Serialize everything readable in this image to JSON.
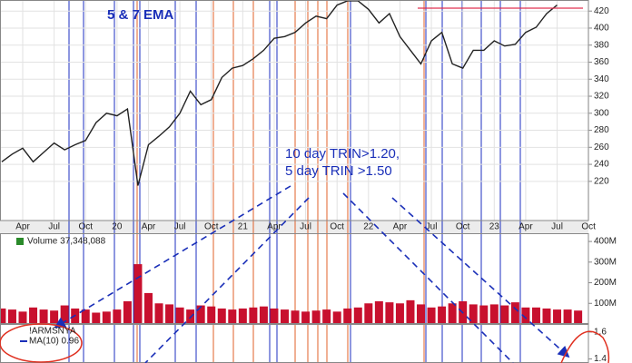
{
  "chart_data": [
    {
      "type": "line",
      "annotations": [
        "5 & 7 EMA",
        "10 day TRIN>1.20,",
        "5 day TRIN >1.50"
      ],
      "categories": [
        null,
        null,
        "Apr",
        null,
        null,
        "Jul",
        null,
        null,
        "Oct",
        null,
        null,
        "20",
        null,
        null,
        "Apr",
        null,
        null,
        "Jul",
        null,
        null,
        "Oct",
        null,
        null,
        "21",
        null,
        null,
        "Apr",
        null,
        null,
        "Jul",
        null,
        null,
        "Oct",
        null,
        null,
        "22",
        null,
        null,
        "Apr",
        null,
        null,
        "Jul",
        null,
        null,
        "Oct",
        null,
        null,
        "23",
        null,
        null,
        "Apr",
        null,
        null,
        "Jul",
        null,
        null,
        "Oct"
      ],
      "series": [
        {
          "color": "#222222",
          "values": [
            243,
            252,
            259,
            243,
            254,
            265,
            257,
            263,
            268,
            289,
            300,
            297,
            305,
            215,
            263,
            273,
            284,
            300,
            326,
            310,
            316,
            342,
            353,
            356,
            364,
            374,
            388,
            390,
            395,
            406,
            414,
            411,
            427,
            432,
            432,
            422,
            406,
            417,
            390,
            374,
            358,
            385,
            395,
            358,
            353,
            374,
            374,
            385,
            379,
            381,
            395,
            401,
            417,
            427,
            null,
            null,
            null
          ]
        }
      ],
      "ylim": [
        174,
        433
      ],
      "yticks": [
        220,
        240,
        260,
        280,
        300,
        320,
        340,
        360,
        380,
        400,
        420
      ],
      "grid": true
    },
    {
      "type": "bar",
      "legend": "Volume 37,348,088",
      "color": "#c8102e",
      "values": [
        75000000,
        70000000,
        60000000,
        80000000,
        70000000,
        65000000,
        90000000,
        75000000,
        70000000,
        55000000,
        60000000,
        70000000,
        110000000,
        290000000,
        150000000,
        100000000,
        95000000,
        80000000,
        70000000,
        90000000,
        85000000,
        75000000,
        70000000,
        75000000,
        80000000,
        85000000,
        75000000,
        70000000,
        65000000,
        60000000,
        65000000,
        70000000,
        60000000,
        75000000,
        80000000,
        100000000,
        110000000,
        105000000,
        100000000,
        115000000,
        95000000,
        80000000,
        85000000,
        100000000,
        110000000,
        95000000,
        90000000,
        95000000,
        90000000,
        105000000,
        80000000,
        80000000,
        75000000,
        70000000,
        70000000,
        65000000,
        null
      ],
      "ylim": [
        0,
        440000000
      ],
      "yticks": [
        {
          "value": 100000000,
          "label": "100M"
        },
        {
          "value": 200000000,
          "label": "200M"
        },
        {
          "value": 300000000,
          "label": "300M"
        },
        {
          "value": 400000000,
          "label": "400M"
        }
      ]
    },
    {
      "type": "line",
      "legend": [
        "!ARMSNYA",
        "MA(10) 0.96"
      ],
      "ylim": [
        1.37,
        1.66
      ],
      "yticks": [
        1.4,
        1.6
      ]
    }
  ]
}
